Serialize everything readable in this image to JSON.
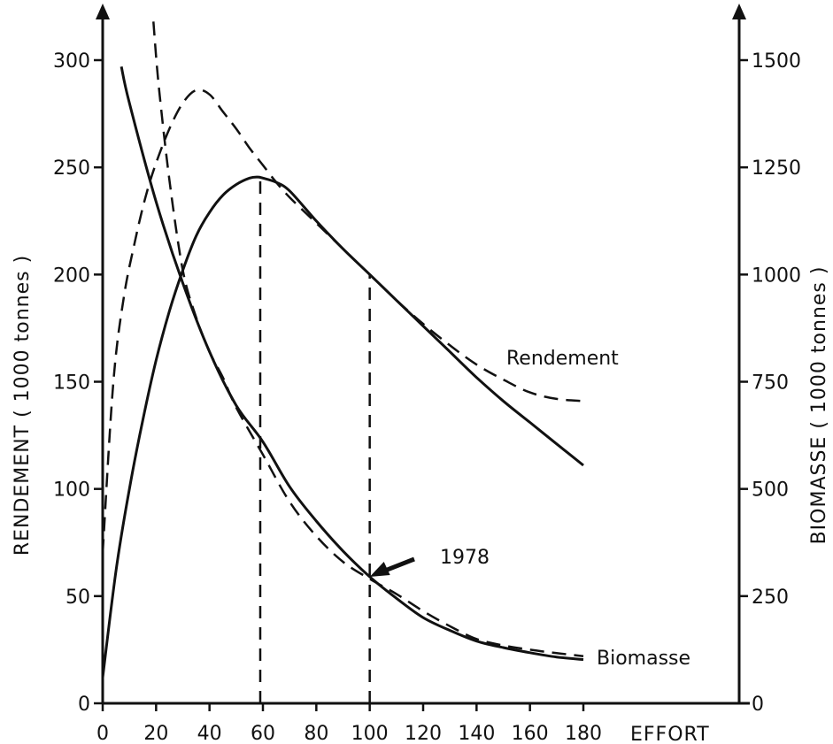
{
  "chart_data": {
    "type": "line",
    "xlabel": "EFFORT",
    "ylabel": "RENDEMENT ( 1000 tonnes )",
    "y2label": "BIOMASSE ( 1000 tonnes )",
    "xlim": [
      0,
      180
    ],
    "ylim": [
      0,
      300
    ],
    "y2lim": [
      0,
      1500
    ],
    "x_ticks": [
      "0",
      "20",
      "40",
      "60",
      "80",
      "100",
      "120",
      "140",
      "160",
      "180"
    ],
    "y_ticks": [
      "0",
      "50",
      "100",
      "150",
      "200",
      "250",
      "300"
    ],
    "y2_ticks": [
      "0",
      "250",
      "500",
      "750",
      "1000",
      "1250",
      "1500"
    ],
    "grid": false,
    "series": [
      {
        "name": "Rendement",
        "axis": "left",
        "style": "solid",
        "x": [
          0,
          5,
          10,
          15,
          20,
          25,
          30,
          35,
          40,
          45,
          50,
          55,
          58,
          60,
          65,
          70,
          80,
          90,
          100,
          110,
          120,
          130,
          140,
          150,
          160,
          170,
          180
        ],
        "y": [
          12,
          62,
          100,
          132,
          160,
          183,
          202,
          218,
          229,
          237,
          242,
          245,
          245.5,
          245,
          243,
          239,
          225,
          212,
          200,
          188,
          176,
          164,
          152,
          141,
          131,
          121,
          111
        ]
      },
      {
        "name": "Rendement",
        "axis": "left",
        "style": "dashed",
        "x": [
          0,
          4,
          8,
          12,
          16,
          20,
          25,
          30,
          35,
          40,
          45,
          50,
          55,
          60,
          65,
          70,
          80,
          90,
          100,
          110,
          120,
          130,
          140,
          150,
          160,
          170,
          180
        ],
        "y": [
          70,
          150,
          190,
          215,
          236,
          252,
          268,
          280,
          286,
          284,
          276,
          268,
          259,
          251,
          243,
          236,
          224,
          212,
          200,
          188,
          177,
          167,
          158,
          151,
          145,
          142,
          141
        ]
      },
      {
        "name": "Biomasse",
        "axis": "right",
        "style": "solid",
        "x": [
          7,
          10,
          20,
          30,
          40,
          50,
          60,
          70,
          80,
          90,
          100,
          110,
          120,
          130,
          140,
          150,
          160,
          170,
          180
        ],
        "y": [
          1485,
          1400,
          1170,
          980,
          820,
          695,
          610,
          505,
          425,
          355,
          295,
          245,
          200,
          170,
          145,
          130,
          118,
          108,
          102
        ]
      },
      {
        "name": "Biomasse",
        "axis": "right",
        "style": "dashed",
        "x": [
          19,
          21,
          25,
          30,
          35,
          40,
          45,
          50,
          60,
          70,
          80,
          90,
          100,
          110,
          120,
          130,
          140,
          150,
          160,
          170,
          180
        ],
        "y": [
          1590,
          1440,
          1220,
          1010,
          900,
          820,
          760,
          690,
          580,
          470,
          390,
          330,
          290,
          255,
          215,
          180,
          150,
          135,
          125,
          117,
          110
        ]
      }
    ],
    "reference_lines": [
      {
        "x": 59,
        "from": 0,
        "to": 245.5,
        "axis": "left"
      },
      {
        "x": 100,
        "from": 0,
        "to": 200,
        "axis": "left"
      }
    ],
    "annotations": {
      "year": "1978",
      "year_point": {
        "x": 100,
        "y": 295,
        "axis": "right"
      },
      "rendement_label": "Rendement",
      "biomasse_label": "Biomasse"
    }
  }
}
